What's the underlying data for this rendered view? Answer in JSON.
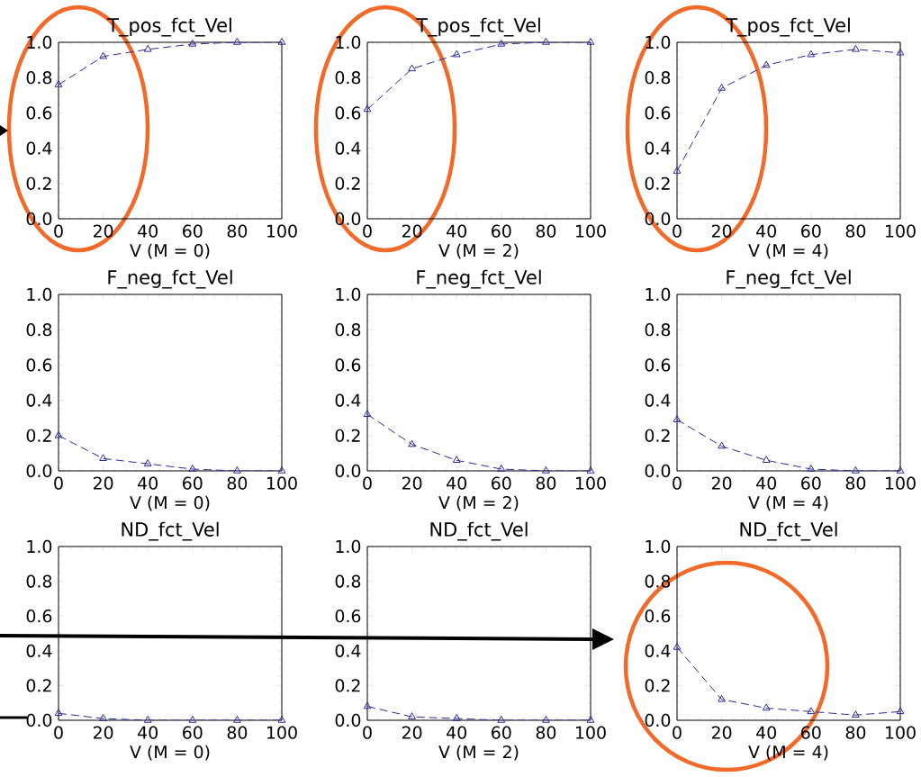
{
  "chart_data": [
    {
      "type": "line",
      "title": "T_pos_fct_Vel",
      "xlabel": "V (M = 0)",
      "x": [
        0,
        20,
        40,
        60,
        80,
        100
      ],
      "values": [
        0.76,
        0.92,
        0.96,
        0.99,
        1.0,
        1.0
      ],
      "color": "#2b2b9b",
      "marker": "triangle",
      "line_style": "dashed",
      "xlim": [
        0,
        100
      ],
      "ylim": [
        0,
        1
      ],
      "xticks": [
        0,
        20,
        40,
        60,
        80,
        100
      ],
      "yticks": [
        {
          "value": 0,
          "label": "0.0"
        },
        {
          "value": 0.2,
          "label": "0.2"
        },
        {
          "value": 0.4,
          "label": "0.4"
        },
        {
          "value": 0.6,
          "label": "0.6"
        },
        {
          "value": 0.8,
          "label": "0.8"
        },
        {
          "value": 1,
          "label": "1.0"
        }
      ]
    },
    {
      "type": "line",
      "title": "T_pos_fct_Vel",
      "xlabel": "V (M = 2)",
      "x": [
        0,
        20,
        40,
        60,
        80,
        100
      ],
      "values": [
        0.62,
        0.85,
        0.93,
        0.99,
        1.0,
        1.0
      ],
      "color": "#2b2b9b",
      "marker": "triangle",
      "line_style": "dashed",
      "xlim": [
        0,
        100
      ],
      "ylim": [
        0,
        1
      ],
      "xticks": [
        0,
        20,
        40,
        60,
        80,
        100
      ],
      "yticks": [
        {
          "value": 0,
          "label": "0.0"
        },
        {
          "value": 0.2,
          "label": "0.2"
        },
        {
          "value": 0.4,
          "label": "0.4"
        },
        {
          "value": 0.6,
          "label": "0.6"
        },
        {
          "value": 0.8,
          "label": "0.8"
        },
        {
          "value": 1,
          "label": "1.0"
        }
      ]
    },
    {
      "type": "line",
      "title": "T_pos_fct_Vel",
      "xlabel": "V (M = 4)",
      "x": [
        0,
        20,
        40,
        60,
        80,
        100
      ],
      "values": [
        0.27,
        0.74,
        0.87,
        0.93,
        0.96,
        0.94
      ],
      "color": "#2b2b9b",
      "marker": "triangle",
      "line_style": "dashed",
      "xlim": [
        0,
        100
      ],
      "ylim": [
        0,
        1
      ],
      "xticks": [
        0,
        20,
        40,
        60,
        80,
        100
      ],
      "yticks": [
        {
          "value": 0,
          "label": "0.0"
        },
        {
          "value": 0.2,
          "label": "0.2"
        },
        {
          "value": 0.4,
          "label": "0.4"
        },
        {
          "value": 0.6,
          "label": "0.6"
        },
        {
          "value": 0.8,
          "label": "0.8"
        },
        {
          "value": 1,
          "label": "1.0"
        }
      ]
    },
    {
      "type": "line",
      "title": "F_neg_fct_Vel",
      "xlabel": "V (M = 0)",
      "x": [
        0,
        20,
        40,
        60,
        80,
        100
      ],
      "values": [
        0.2,
        0.07,
        0.04,
        0.01,
        0.0,
        0.0
      ],
      "color": "#2b2b9b",
      "marker": "triangle",
      "line_style": "dashed",
      "xlim": [
        0,
        100
      ],
      "ylim": [
        0,
        1
      ],
      "xticks": [
        0,
        20,
        40,
        60,
        80,
        100
      ],
      "yticks": [
        {
          "value": 0,
          "label": "0.0"
        },
        {
          "value": 0.2,
          "label": "0.2"
        },
        {
          "value": 0.4,
          "label": "0.4"
        },
        {
          "value": 0.6,
          "label": "0.6"
        },
        {
          "value": 0.8,
          "label": "0.8"
        },
        {
          "value": 1,
          "label": "1.0"
        }
      ]
    },
    {
      "type": "line",
      "title": "F_neg_fct_Vel",
      "xlabel": "V (M = 2)",
      "x": [
        0,
        20,
        40,
        60,
        80,
        100
      ],
      "values": [
        0.32,
        0.15,
        0.06,
        0.01,
        0.0,
        0.0
      ],
      "color": "#2b2b9b",
      "marker": "triangle",
      "line_style": "dashed",
      "xlim": [
        0,
        100
      ],
      "ylim": [
        0,
        1
      ],
      "xticks": [
        0,
        20,
        40,
        60,
        80,
        100
      ],
      "yticks": [
        {
          "value": 0,
          "label": "0.0"
        },
        {
          "value": 0.2,
          "label": "0.2"
        },
        {
          "value": 0.4,
          "label": "0.4"
        },
        {
          "value": 0.6,
          "label": "0.6"
        },
        {
          "value": 0.8,
          "label": "0.8"
        },
        {
          "value": 1,
          "label": "1.0"
        }
      ]
    },
    {
      "type": "line",
      "title": "F_neg_fct_Vel",
      "xlabel": "V (M = 4)",
      "x": [
        0,
        20,
        40,
        60,
        80,
        100
      ],
      "values": [
        0.29,
        0.14,
        0.06,
        0.01,
        0.0,
        0.0
      ],
      "color": "#2b2b9b",
      "marker": "triangle",
      "line_style": "dashed",
      "xlim": [
        0,
        100
      ],
      "ylim": [
        0,
        1
      ],
      "xticks": [
        0,
        20,
        40,
        60,
        80,
        100
      ],
      "yticks": [
        {
          "value": 0,
          "label": "0.0"
        },
        {
          "value": 0.2,
          "label": "0.2"
        },
        {
          "value": 0.4,
          "label": "0.4"
        },
        {
          "value": 0.6,
          "label": "0.6"
        },
        {
          "value": 0.8,
          "label": "0.8"
        },
        {
          "value": 1,
          "label": "1.0"
        }
      ]
    },
    {
      "type": "line",
      "title": "ND_fct_Vel",
      "xlabel": "V (M = 0)",
      "x": [
        0,
        20,
        40,
        60,
        80,
        100
      ],
      "values": [
        0.04,
        0.01,
        0.0,
        0.0,
        0.0,
        0.0
      ],
      "color": "#2b2b9b",
      "marker": "triangle",
      "line_style": "dashed",
      "xlim": [
        0,
        100
      ],
      "ylim": [
        0,
        1
      ],
      "xticks": [
        0,
        20,
        40,
        60,
        80,
        100
      ],
      "yticks": [
        {
          "value": 0,
          "label": "0.0"
        },
        {
          "value": 0.2,
          "label": "0.2"
        },
        {
          "value": 0.4,
          "label": "0.4"
        },
        {
          "value": 0.6,
          "label": "0.6"
        },
        {
          "value": 0.8,
          "label": "0.8"
        },
        {
          "value": 1,
          "label": "1.0"
        }
      ]
    },
    {
      "type": "line",
      "title": "ND_fct_Vel",
      "xlabel": "V (M = 2)",
      "x": [
        0,
        20,
        40,
        60,
        80,
        100
      ],
      "values": [
        0.08,
        0.02,
        0.01,
        0.0,
        0.0,
        0.0
      ],
      "color": "#2b2b9b",
      "marker": "triangle",
      "line_style": "dashed",
      "xlim": [
        0,
        100
      ],
      "ylim": [
        0,
        1
      ],
      "xticks": [
        0,
        20,
        40,
        60,
        80,
        100
      ],
      "yticks": [
        {
          "value": 0,
          "label": "0.0"
        },
        {
          "value": 0.2,
          "label": "0.2"
        },
        {
          "value": 0.4,
          "label": "0.4"
        },
        {
          "value": 0.6,
          "label": "0.6"
        },
        {
          "value": 0.8,
          "label": "0.8"
        },
        {
          "value": 1,
          "label": "1.0"
        }
      ]
    },
    {
      "type": "line",
      "title": "ND_fct_Vel",
      "xlabel": "V (M = 4)",
      "x": [
        0,
        20,
        40,
        60,
        80,
        100
      ],
      "values": [
        0.42,
        0.12,
        0.07,
        0.05,
        0.03,
        0.05
      ],
      "color": "#2b2b9b",
      "marker": "triangle",
      "line_style": "dashed",
      "xlim": [
        0,
        100
      ],
      "ylim": [
        0,
        1
      ],
      "xticks": [
        0,
        20,
        40,
        60,
        80,
        100
      ],
      "yticks": [
        {
          "value": 0,
          "label": "0.0"
        },
        {
          "value": 0.2,
          "label": "0.2"
        },
        {
          "value": 0.4,
          "label": "0.4"
        },
        {
          "value": 0.6,
          "label": "0.6"
        },
        {
          "value": 0.8,
          "label": "0.8"
        },
        {
          "value": 1,
          "label": "1.0"
        }
      ]
    }
  ]
}
